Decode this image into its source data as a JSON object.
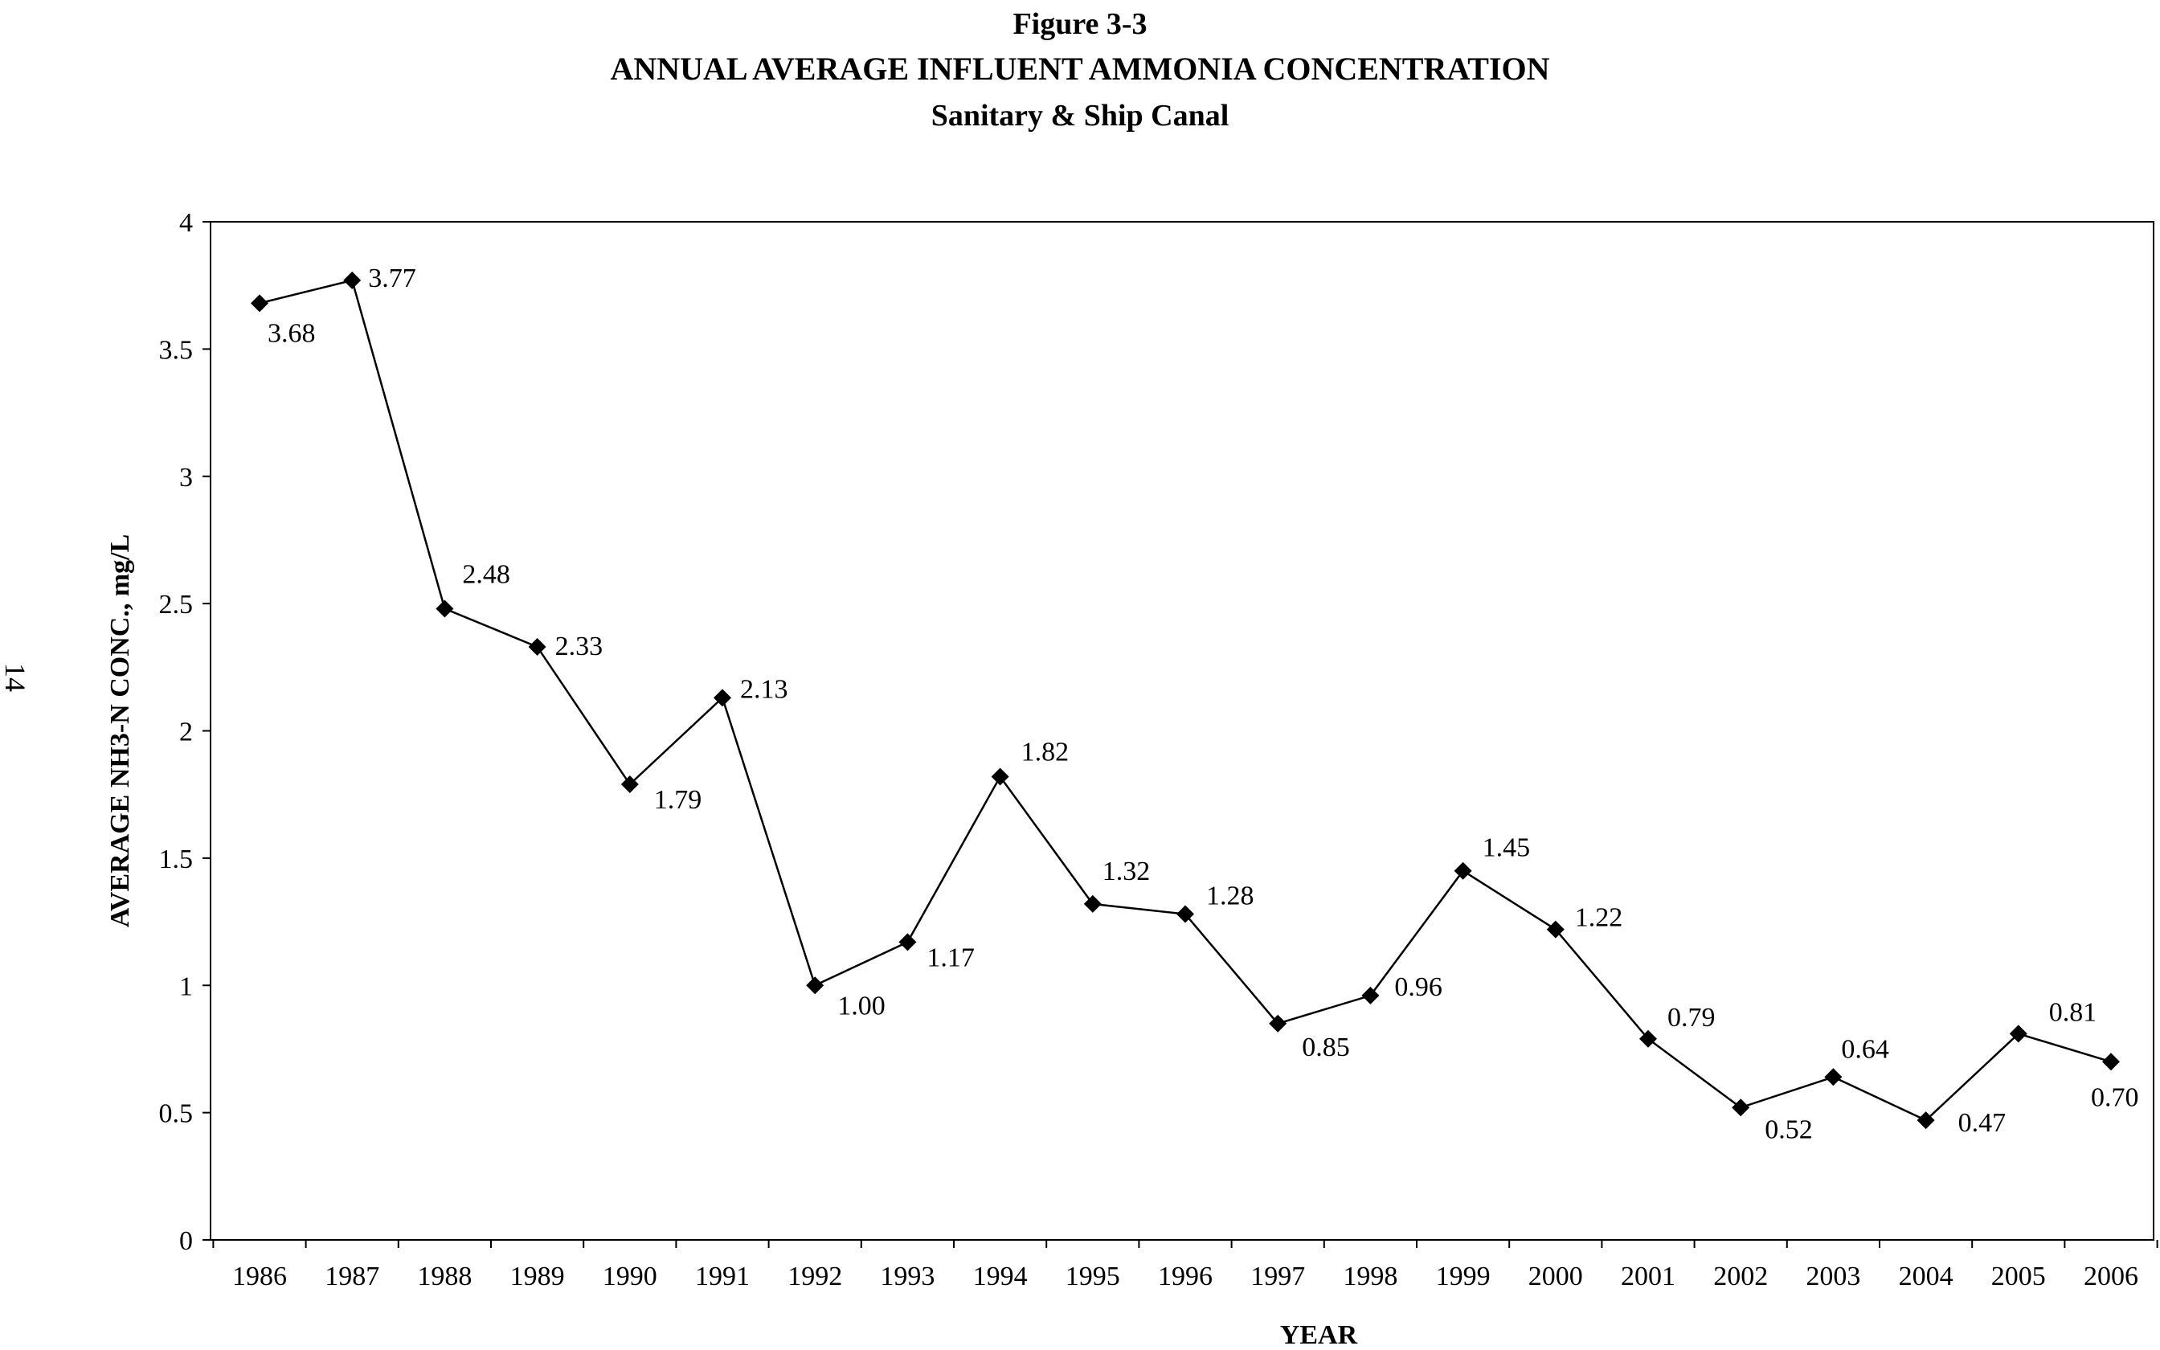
{
  "figure_label": "Figure 3-3",
  "page_number": "14",
  "chart_data": {
    "type": "line",
    "title": "ANNUAL AVERAGE INFLUENT AMMONIA CONCENTRATION",
    "subtitle": "Sanitary & Ship Canal",
    "xlabel": "YEAR",
    "ylabel": "AVERAGE NH3-N CONC., mg/L",
    "ylim": [
      0,
      4
    ],
    "yticks": [
      "0",
      "0.5",
      "1",
      "1.5",
      "2",
      "2.5",
      "3",
      "3.5",
      "4"
    ],
    "categories": [
      "1986",
      "1987",
      "1988",
      "1989",
      "1990",
      "1991",
      "1992",
      "1993",
      "1994",
      "1995",
      "1996",
      "1997",
      "1998",
      "1999",
      "2000",
      "2001",
      "2002",
      "2003",
      "2004",
      "2005",
      "2006"
    ],
    "series": [
      {
        "values": [
          3.68,
          3.77,
          2.48,
          2.33,
          1.79,
          2.13,
          1.0,
          1.17,
          1.82,
          1.32,
          1.28,
          0.85,
          0.96,
          1.45,
          1.22,
          0.79,
          0.52,
          0.64,
          0.47,
          0.81,
          0.7
        ],
        "labels": [
          "3.68",
          "3.77",
          "2.48",
          "2.33",
          "1.79",
          "2.13",
          "1.00",
          "1.17",
          "1.82",
          "1.32",
          "1.28",
          "0.85",
          "0.96",
          "1.45",
          "1.22",
          "0.79",
          "0.52",
          "0.64",
          "0.47",
          "0.81",
          "0.70"
        ]
      }
    ],
    "grid": false,
    "legend": "none",
    "line_color": "#000000",
    "marker": "diamond"
  }
}
